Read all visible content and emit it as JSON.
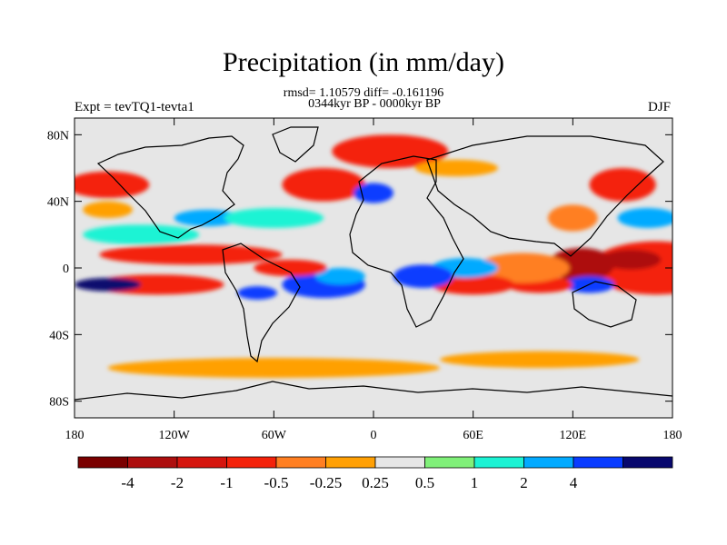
{
  "title": "Precipitation (in mm/day)",
  "stats_line": "rmsd= 1.10579 diff= -0.161196",
  "period_line": "0344kyr BP - 0000kyr BP",
  "experiment_label": "Expt = tevTQ1-tevta1",
  "season_label": "DJF",
  "map": {
    "projection": "cylindrical-equidistant",
    "lat_range": [
      -90,
      90
    ],
    "lon_range": [
      -180,
      180
    ],
    "lat_ticks": [
      {
        "value": 80,
        "label": "80N"
      },
      {
        "value": 40,
        "label": "40N"
      },
      {
        "value": 0,
        "label": "0"
      },
      {
        "value": -40,
        "label": "40S"
      },
      {
        "value": -80,
        "label": "80S"
      }
    ],
    "lon_ticks": [
      {
        "value": -180,
        "label": "180"
      },
      {
        "value": -120,
        "label": "120W"
      },
      {
        "value": -60,
        "label": "60W"
      },
      {
        "value": 0,
        "label": "0"
      },
      {
        "value": 60,
        "label": "60E"
      },
      {
        "value": 120,
        "label": "120E"
      },
      {
        "value": 180,
        "label": "180"
      }
    ],
    "background_color": "#e6e6e6",
    "anomaly_regions": [
      {
        "lon": 170,
        "lat": 0,
        "rx": 40,
        "ry": 16,
        "color": "#f4220a"
      },
      {
        "lon": 155,
        "lat": 5,
        "rx": 18,
        "ry": 6,
        "color": "#ad0e0e"
      },
      {
        "lon": 125,
        "lat": 2,
        "rx": 20,
        "ry": 10,
        "color": "#ad0e0e"
      },
      {
        "lon": 130,
        "lat": -10,
        "rx": 15,
        "ry": 5,
        "color": "#093cff"
      },
      {
        "lon": 100,
        "lat": -10,
        "rx": 20,
        "ry": 5,
        "color": "#f4220a"
      },
      {
        "lon": 90,
        "lat": 0,
        "rx": 28,
        "ry": 9,
        "color": "#ff7f22"
      },
      {
        "lon": 60,
        "lat": -10,
        "rx": 25,
        "ry": 6,
        "color": "#f4220a"
      },
      {
        "lon": 55,
        "lat": 0,
        "rx": 20,
        "ry": 6,
        "color": "#02aaff"
      },
      {
        "lon": 30,
        "lat": -5,
        "rx": 18,
        "ry": 7,
        "color": "#093cff"
      },
      {
        "lon": -30,
        "lat": -10,
        "rx": 25,
        "ry": 8,
        "color": "#093cff"
      },
      {
        "lon": -20,
        "lat": -5,
        "rx": 15,
        "ry": 5,
        "color": "#02aaff"
      },
      {
        "lon": -50,
        "lat": 0,
        "rx": 22,
        "ry": 5,
        "color": "#f4220a"
      },
      {
        "lon": -70,
        "lat": -15,
        "rx": 12,
        "ry": 4,
        "color": "#093cff"
      },
      {
        "lon": -110,
        "lat": 8,
        "rx": 55,
        "ry": 6,
        "color": "#f4220a"
      },
      {
        "lon": -130,
        "lat": -10,
        "rx": 40,
        "ry": 6,
        "color": "#f4220a"
      },
      {
        "lon": -160,
        "lat": -10,
        "rx": 20,
        "ry": 4,
        "color": "#08086e"
      },
      {
        "lon": -140,
        "lat": 20,
        "rx": 35,
        "ry": 6,
        "color": "#1cf3d4"
      },
      {
        "lon": -100,
        "lat": 30,
        "rx": 20,
        "ry": 5,
        "color": "#02aaff"
      },
      {
        "lon": -60,
        "lat": 30,
        "rx": 30,
        "ry": 6,
        "color": "#1cf3d4"
      },
      {
        "lon": -30,
        "lat": 50,
        "rx": 25,
        "ry": 10,
        "color": "#f4220a"
      },
      {
        "lon": 10,
        "lat": 70,
        "rx": 35,
        "ry": 10,
        "color": "#f4220a"
      },
      {
        "lon": 50,
        "lat": 60,
        "rx": 25,
        "ry": 5,
        "color": "#ffa005"
      },
      {
        "lon": 0,
        "lat": 45,
        "rx": 12,
        "ry": 6,
        "color": "#093cff"
      },
      {
        "lon": 150,
        "lat": 50,
        "rx": 20,
        "ry": 10,
        "color": "#f4220a"
      },
      {
        "lon": 165,
        "lat": 30,
        "rx": 18,
        "ry": 6,
        "color": "#02aaff"
      },
      {
        "lon": -160,
        "lat": 50,
        "rx": 25,
        "ry": 8,
        "color": "#f4220a"
      },
      {
        "lon": -60,
        "lat": -60,
        "rx": 100,
        "ry": 6,
        "color": "#ffa005"
      },
      {
        "lon": 100,
        "lat": -55,
        "rx": 60,
        "ry": 5,
        "color": "#ffa005"
      },
      {
        "lon": -160,
        "lat": 35,
        "rx": 15,
        "ry": 5,
        "color": "#ffa005"
      },
      {
        "lon": 120,
        "lat": 30,
        "rx": 15,
        "ry": 8,
        "color": "#ff7f22"
      }
    ],
    "coastline_color": "#000000"
  },
  "colorbar": {
    "colors": [
      "#7a0000",
      "#ad0e0e",
      "#d5150e",
      "#f4220a",
      "#ff7f22",
      "#ffa005",
      "#e6e6e6",
      "#80f079",
      "#1cf3d4",
      "#02aaff",
      "#093cff",
      "#08086e"
    ],
    "labels": [
      "-4",
      "-2",
      "-1",
      "-0.5",
      "-0.25",
      "0.25",
      "0.5",
      "1",
      "2",
      "4"
    ]
  }
}
